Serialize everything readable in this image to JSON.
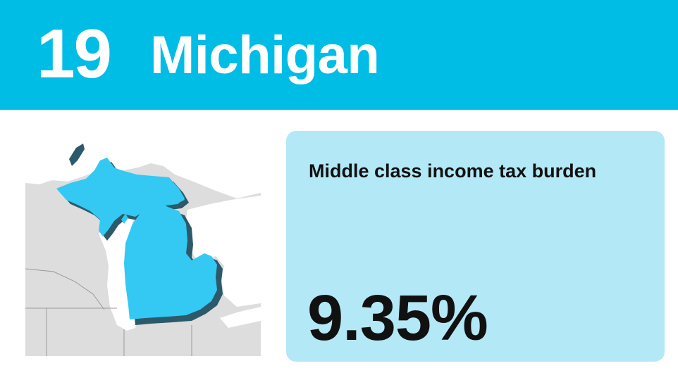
{
  "header": {
    "rank": "19",
    "state_name": "Michigan"
  },
  "map": {
    "highlighted_state": "Michigan",
    "highlight_color": "#33C9F2",
    "neighbor_color": "#DDDDDD",
    "water_color": "#FFFFFF"
  },
  "metric": {
    "label": "Middle class income tax burden",
    "value": "9.35%"
  },
  "colors": {
    "header_background": "#00BDE6",
    "card_background": "#B3E8F7",
    "text_dark": "#111111",
    "text_light": "#FFFFFF"
  }
}
